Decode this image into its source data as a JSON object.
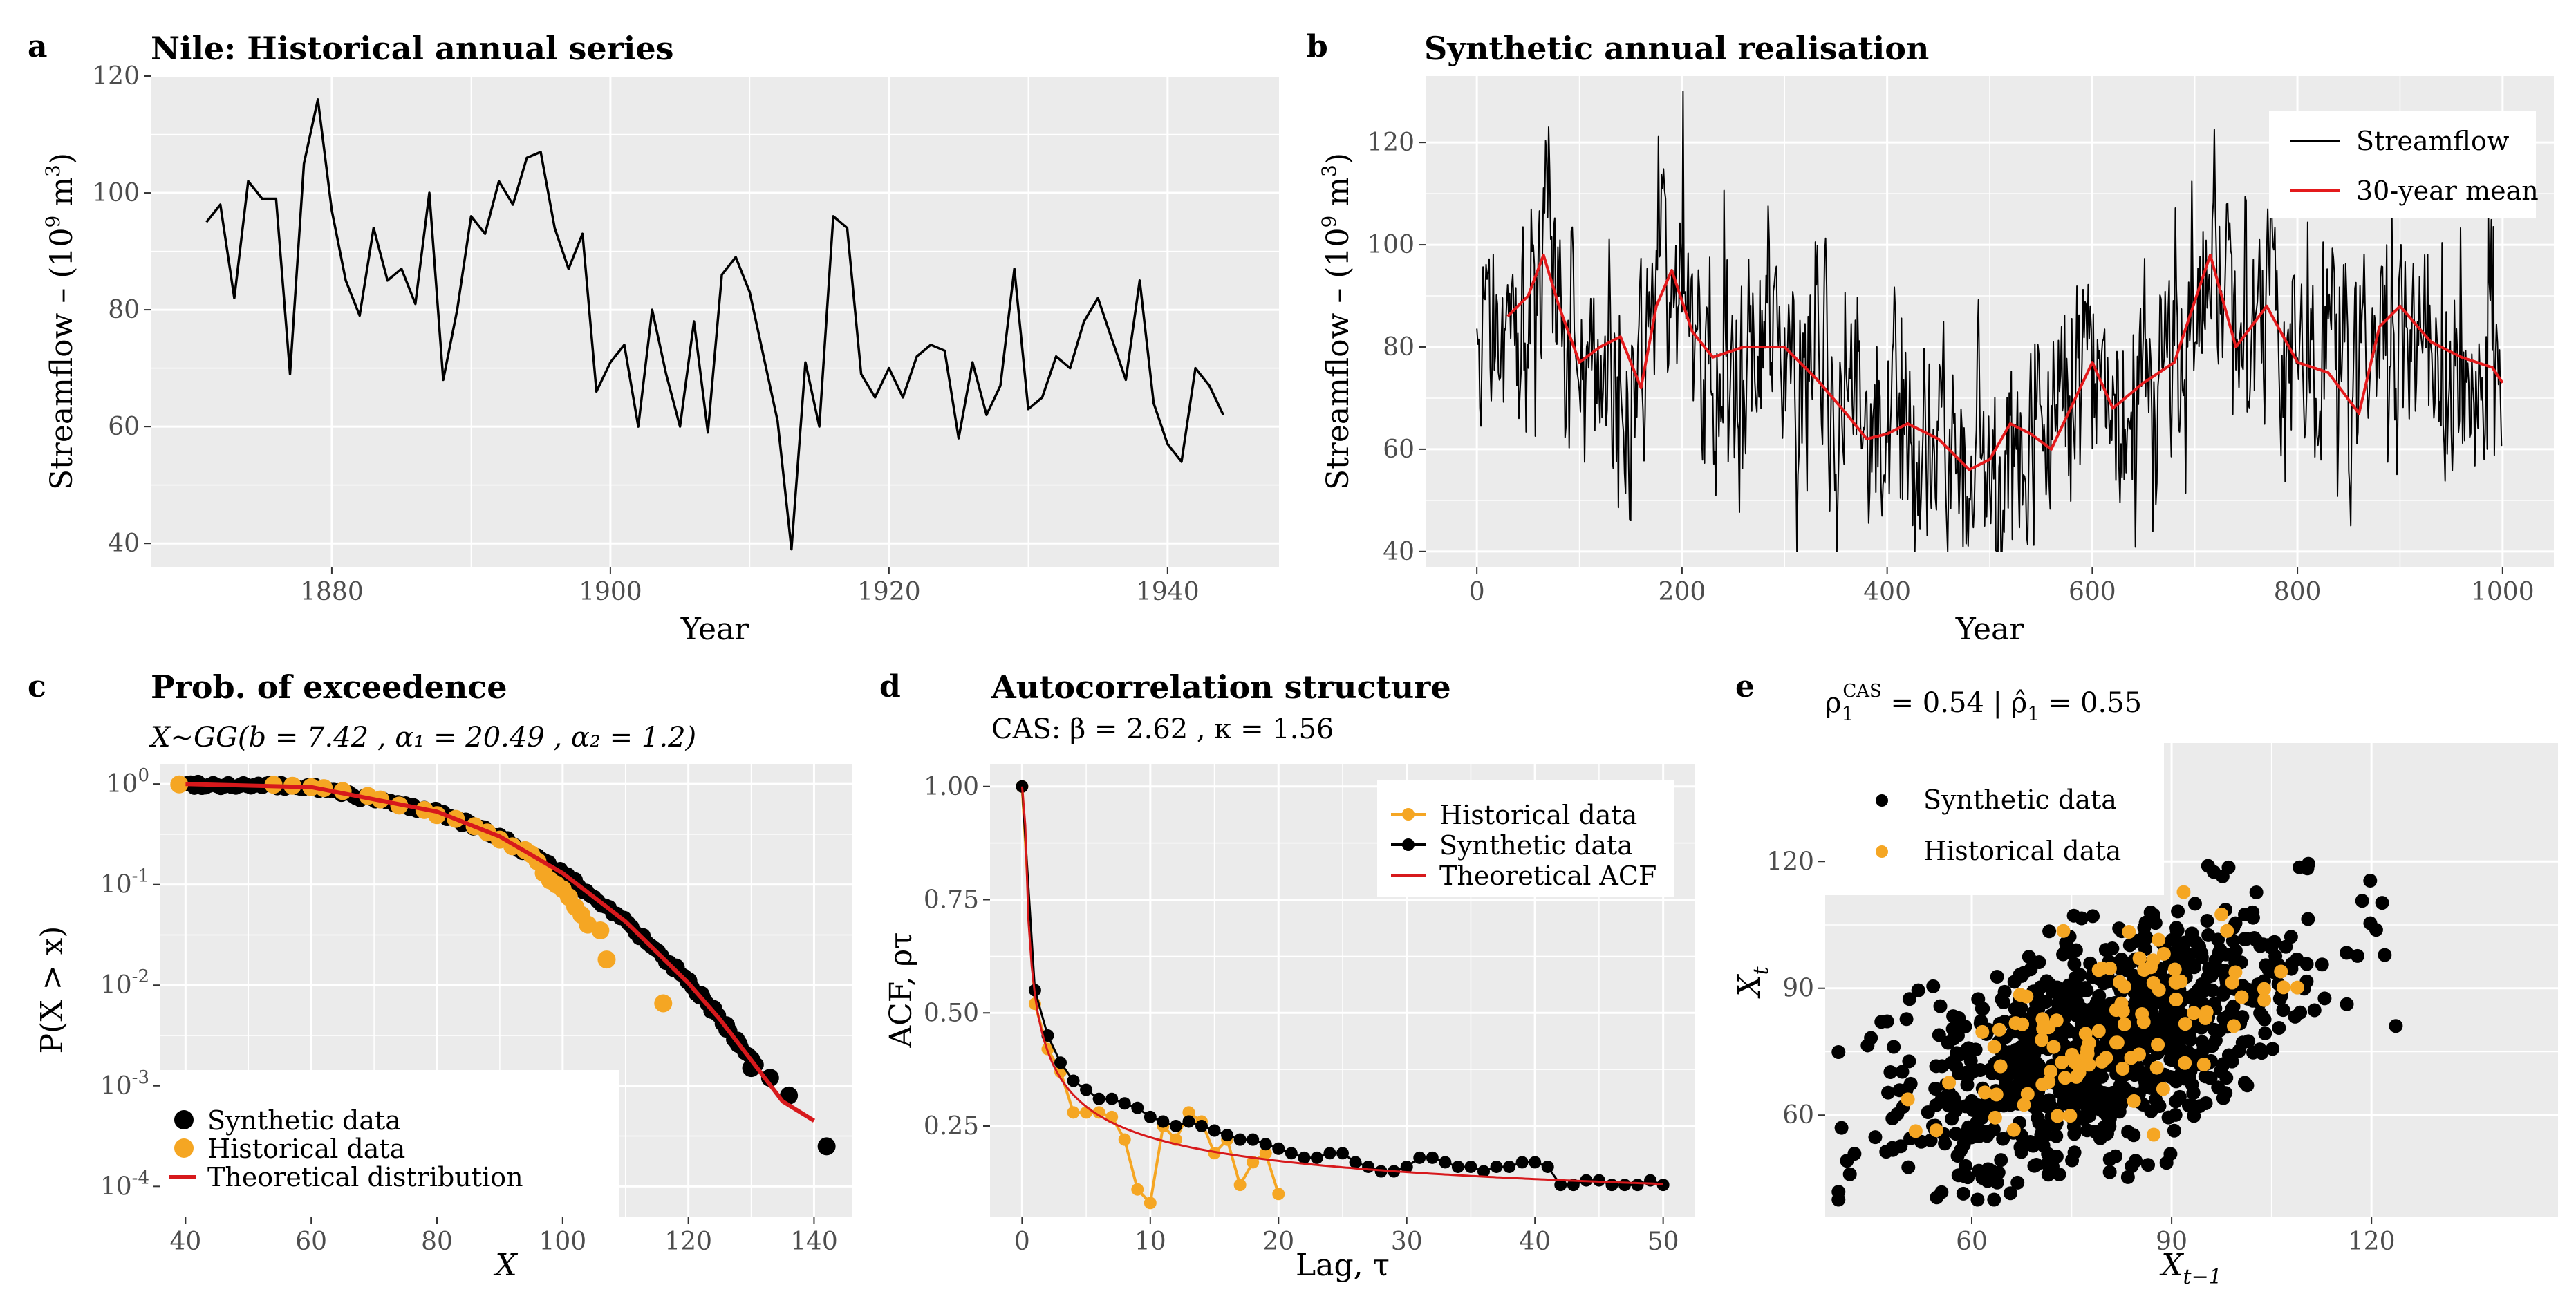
{
  "colors": {
    "panel_bg": "#ebebeb",
    "grid": "#ffffff",
    "line_black": "#000000",
    "mean_red": "#e41a1c",
    "theory_red": "#d7191c",
    "historical_orange": "#f5a623",
    "tick_text": "#4d4d4d"
  },
  "chart_data": [
    {
      "id": "a",
      "panel_label": "a",
      "type": "line",
      "title": "Nile: Historical annual series",
      "xlabel": "Year",
      "ylabel_main": "Streamflow – (10",
      "ylabel_sup": "9",
      "ylabel_unit": " m",
      "ylabel_sup2": "3",
      "ylabel_end": ")",
      "xlim": [
        1867,
        1948
      ],
      "ylim": [
        36,
        120
      ],
      "xticks": [
        1880,
        1900,
        1920,
        1940
      ],
      "xtick_labels": [
        "1880",
        "1900",
        "1920",
        "1940"
      ],
      "yticks": [
        40,
        60,
        80,
        100,
        120
      ],
      "ytick_labels": [
        "40",
        "60",
        "80",
        "100",
        "120"
      ],
      "x_start": 1871,
      "values": [
        95,
        98,
        82,
        102,
        99,
        99,
        69,
        105,
        116,
        97,
        85,
        79,
        94,
        85,
        87,
        81,
        100,
        68,
        80,
        96,
        93,
        102,
        98,
        106,
        107,
        94,
        87,
        93,
        66,
        71,
        74,
        60,
        80,
        69,
        60,
        78,
        59,
        86,
        89,
        83,
        72,
        61,
        39,
        71,
        60,
        96,
        94,
        69,
        65,
        70,
        65,
        72,
        74,
        73,
        58,
        71,
        62,
        67,
        87,
        63,
        65,
        72,
        70,
        78,
        82,
        75,
        68,
        85,
        64,
        57,
        54,
        70,
        67,
        62
      ]
    },
    {
      "id": "b",
      "panel_label": "b",
      "type": "line",
      "title": "Synthetic annual realisation",
      "xlabel": "Year",
      "ylabel_main": "Streamflow – (10",
      "ylabel_sup": "9",
      "ylabel_unit": " m",
      "ylabel_sup2": "3",
      "ylabel_end": ")",
      "xlim": [
        -50,
        1050
      ],
      "ylim": [
        37,
        133
      ],
      "xticks": [
        0,
        200,
        400,
        600,
        800,
        1000
      ],
      "xtick_labels": [
        "0",
        "200",
        "400",
        "600",
        "800",
        "1000"
      ],
      "yticks": [
        40,
        60,
        80,
        100,
        120
      ],
      "ytick_labels": [
        "40",
        "60",
        "80",
        "100",
        "120"
      ],
      "n_years": 1000,
      "streamflow_range": [
        40,
        130
      ],
      "series": [
        {
          "name": "Streamflow",
          "kind": "noisy-annual"
        },
        {
          "name": "30-year mean",
          "x": [
            30,
            50,
            65,
            80,
            100,
            120,
            140,
            160,
            175,
            190,
            210,
            230,
            260,
            300,
            330,
            360,
            380,
            400,
            420,
            450,
            480,
            500,
            520,
            540,
            560,
            600,
            620,
            650,
            680,
            700,
            715,
            740,
            770,
            800,
            830,
            860,
            880,
            900,
            930,
            960,
            990,
            1000
          ],
          "values": [
            86,
            90,
            98,
            88,
            77,
            80,
            82,
            72,
            88,
            95,
            83,
            78,
            80,
            80,
            74,
            67,
            62,
            63,
            65,
            62,
            56,
            58,
            65,
            63,
            60,
            77,
            68,
            73,
            77,
            89,
            98,
            80,
            88,
            77,
            75,
            67,
            84,
            88,
            81,
            78,
            76,
            73
          ]
        }
      ],
      "legend": [
        "Streamflow",
        "30-year mean"
      ],
      "legend_position": "top-right"
    },
    {
      "id": "c",
      "panel_label": "c",
      "type": "scatter",
      "title": "Prob. of exceedence",
      "subtitle": "X~GG(b = 7.42 , α₁ = 20.49 , α₂ = 1.2)",
      "xlabel": "X",
      "ylabel": "P(X > x)",
      "yscale": "log10",
      "xlim": [
        36,
        146
      ],
      "ylim_log10": [
        -4.3,
        0.2
      ],
      "xticks": [
        40,
        60,
        80,
        100,
        120,
        140
      ],
      "xtick_labels": [
        "40",
        "60",
        "80",
        "100",
        "120",
        "140"
      ],
      "yticks_log10": [
        0,
        -1,
        -2,
        -3,
        -4
      ],
      "ytick_base": "10",
      "ytick_exps": [
        "0",
        "-1",
        "-2",
        "-3",
        "-4"
      ],
      "theoretical": {
        "x": [
          40,
          60,
          80,
          90,
          100,
          110,
          120,
          125,
          130,
          135,
          140
        ],
        "p": [
          0.999,
          0.93,
          0.53,
          0.3,
          0.13,
          0.043,
          0.0105,
          0.0046,
          0.0018,
          0.0007,
          0.00045
        ]
      },
      "historical": {
        "x": [
          39,
          54,
          57,
          60,
          62,
          65,
          69,
          71,
          74,
          78,
          80,
          83,
          86,
          88,
          90,
          92,
          94,
          95,
          96,
          97,
          98,
          99,
          100,
          101,
          102,
          103,
          104,
          106,
          107,
          116
        ],
        "p": [
          0.99,
          0.98,
          0.96,
          0.93,
          0.91,
          0.85,
          0.76,
          0.7,
          0.61,
          0.55,
          0.49,
          0.45,
          0.38,
          0.33,
          0.28,
          0.24,
          0.22,
          0.2,
          0.17,
          0.13,
          0.11,
          0.1,
          0.09,
          0.075,
          0.06,
          0.05,
          0.04,
          0.035,
          0.018,
          0.0066
        ]
      },
      "synthetic_tail": {
        "x": [
          118,
          120,
          122,
          124,
          126,
          128,
          130,
          133,
          136,
          142
        ],
        "p": [
          0.015,
          0.011,
          0.008,
          0.0058,
          0.004,
          0.0026,
          0.0015,
          0.0012,
          0.0008,
          0.00025
        ]
      },
      "legend": [
        "Synthetic data",
        "Historical data",
        "Theoretical distribution"
      ],
      "legend_position": "bottom-left"
    },
    {
      "id": "d",
      "panel_label": "d",
      "type": "line",
      "title": "Autocorrelation structure",
      "subtitle": "CAS: β = 2.62 , κ = 1.56",
      "xlabel": "Lag, τ",
      "ylabel": "ACF, ρτ",
      "xlim": [
        -2.5,
        52.5
      ],
      "ylim": [
        0.05,
        1.05
      ],
      "xticks": [
        0,
        10,
        20,
        30,
        40,
        50
      ],
      "xtick_labels": [
        "0",
        "10",
        "20",
        "30",
        "40",
        "50"
      ],
      "yticks": [
        0.25,
        0.5,
        0.75,
        1.0
      ],
      "ytick_labels": [
        "0.25",
        "0.50",
        "0.75",
        "1.00"
      ],
      "historical": {
        "lag": [
          0,
          1,
          2,
          3,
          4,
          5,
          6,
          7,
          8,
          9,
          10,
          11,
          12,
          13,
          14,
          15,
          16,
          17,
          18,
          19,
          20
        ],
        "acf": [
          1.0,
          0.52,
          0.42,
          0.37,
          0.28,
          0.28,
          0.28,
          0.27,
          0.22,
          0.11,
          0.08,
          0.25,
          0.22,
          0.28,
          0.26,
          0.19,
          0.22,
          0.12,
          0.17,
          0.19,
          0.1
        ]
      },
      "synthetic": {
        "lag": [
          0,
          1,
          2,
          3,
          4,
          5,
          6,
          7,
          8,
          9,
          10,
          11,
          12,
          13,
          14,
          15,
          16,
          17,
          18,
          19,
          20,
          21,
          22,
          23,
          24,
          25,
          26,
          27,
          28,
          29,
          30,
          31,
          32,
          33,
          34,
          35,
          36,
          37,
          38,
          39,
          40,
          41,
          42,
          43,
          44,
          45,
          46,
          47,
          48,
          49,
          50
        ],
        "acf": [
          1.0,
          0.55,
          0.45,
          0.39,
          0.35,
          0.33,
          0.31,
          0.31,
          0.3,
          0.29,
          0.27,
          0.26,
          0.25,
          0.26,
          0.25,
          0.24,
          0.23,
          0.22,
          0.22,
          0.21,
          0.2,
          0.19,
          0.18,
          0.18,
          0.19,
          0.19,
          0.17,
          0.16,
          0.15,
          0.15,
          0.16,
          0.18,
          0.18,
          0.17,
          0.16,
          0.16,
          0.15,
          0.16,
          0.16,
          0.17,
          0.17,
          0.16,
          0.12,
          0.12,
          0.13,
          0.13,
          0.12,
          0.12,
          0.12,
          0.13,
          0.12
        ]
      },
      "legend": [
        "Historical data",
        "Synthetic data",
        "Theoretical ACF"
      ],
      "legend_position": "top-right"
    },
    {
      "id": "e",
      "panel_label": "e",
      "type": "scatter",
      "title": "ρ₁^CAS = 0.54 | ρ̂₁ = 0.55",
      "title_parts": [
        "ρ",
        "1",
        "CAS",
        " = 0.54 | ",
        "ρ̂",
        "1",
        " = 0.55"
      ],
      "xlabel": "X",
      "xlabel_sub": "t−1",
      "ylabel": "X",
      "ylabel_sub": "t",
      "xlim": [
        38,
        148
      ],
      "ylim": [
        36,
        148
      ],
      "xticks": [
        60,
        90,
        120
      ],
      "xtick_labels": [
        "60",
        "90",
        "120"
      ],
      "yticks": [
        60,
        90,
        120
      ],
      "ytick_labels": [
        "60",
        "90",
        "120"
      ],
      "correlation": 0.54,
      "n_synthetic": 1000,
      "n_historical": 100,
      "legend": [
        "Synthetic data",
        "Historical data"
      ],
      "legend_position": "top-left"
    }
  ]
}
